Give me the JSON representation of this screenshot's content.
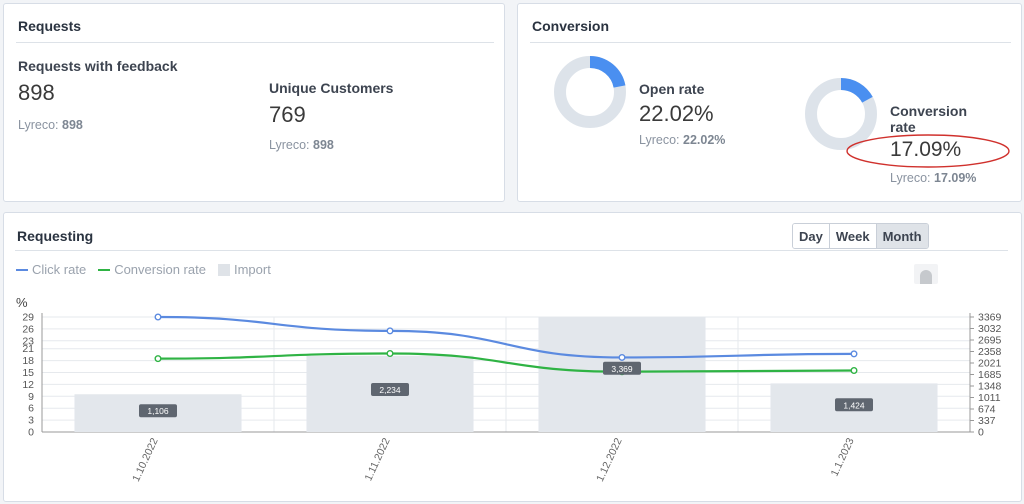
{
  "requests": {
    "title": "Requests",
    "feedback_label": "Requests with feedback",
    "feedback_value": "898",
    "feedback_compare_prefix": "Lyreco:",
    "feedback_compare_value": "898",
    "unique_label": "Unique Customers",
    "unique_value": "769",
    "unique_compare_prefix": "Lyreco:",
    "unique_compare_value": "898"
  },
  "conversion": {
    "title": "Conversion",
    "open_rate_label": "Open rate",
    "open_rate_value": "22.02%",
    "open_rate_fraction": 0.2202,
    "open_rate_compare_prefix": "Lyreco:",
    "open_rate_compare_value": "22.02%",
    "conv_rate_label_1": "Conversion",
    "conv_rate_label_2": "rate",
    "conv_rate_value": "17.09%",
    "conv_rate_fraction": 0.1709,
    "conv_rate_compare_prefix": "Lyreco:",
    "conv_rate_compare_value": "17.09%",
    "donut_fill_color": "#4a8ff0",
    "donut_track_color": "#dde3ea",
    "highlight_color": "#d0312d"
  },
  "requesting": {
    "title": "Requesting",
    "period_buttons": [
      "Day",
      "Week",
      "Month"
    ],
    "active_period": "Month",
    "legend": [
      {
        "name": "Click rate",
        "color": "#5b8ae0",
        "kind": "line"
      },
      {
        "name": "Conversion rate",
        "color": "#2fb344",
        "kind": "line"
      },
      {
        "name": "Import",
        "color": "#dfe3e8",
        "kind": "bar"
      }
    ]
  },
  "chart_data": {
    "type": "bar",
    "x": [
      "1.10.2022",
      "1.11.2022",
      "1.12.2022",
      "1.1.2023"
    ],
    "y_left_label": "%",
    "y_left_ticks": [
      0,
      3,
      6,
      9,
      12,
      15,
      18,
      21,
      23,
      26,
      29
    ],
    "y_left_range": [
      0,
      29
    ],
    "y_right_ticks": [
      0,
      337,
      674,
      1011,
      1348,
      1685,
      2021,
      2358,
      2695,
      3032,
      3369
    ],
    "y_right_range": [
      0,
      3369
    ],
    "series": [
      {
        "name": "Import",
        "type": "bar",
        "axis": "right",
        "values": [
          1106,
          2234,
          3369,
          1424
        ],
        "labels": [
          "1,106",
          "2,234",
          "3,369",
          "1,424"
        ],
        "color": "#e3e7ec"
      },
      {
        "name": "Click rate",
        "type": "line",
        "axis": "left",
        "values": [
          29,
          25.5,
          18.8,
          19.7
        ],
        "color": "#5b8ae0"
      },
      {
        "name": "Conversion rate",
        "type": "line",
        "axis": "left",
        "values": [
          18.5,
          19.8,
          15.2,
          15.5
        ],
        "color": "#2fb344"
      }
    ],
    "grid": true
  }
}
